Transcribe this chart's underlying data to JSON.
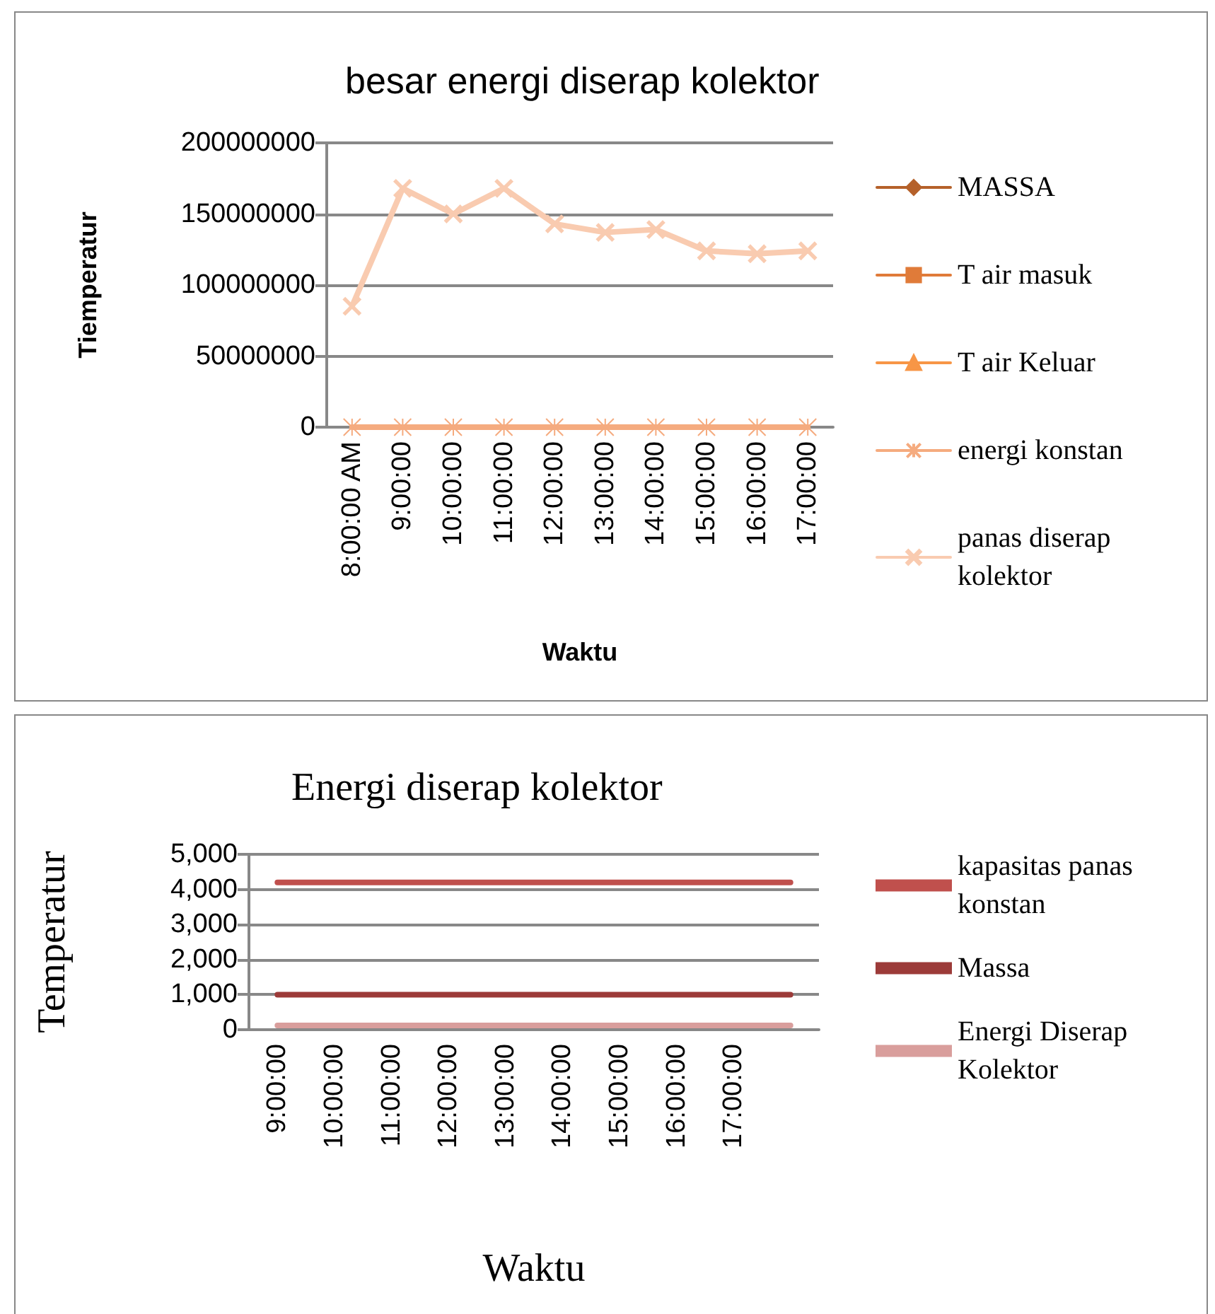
{
  "chart_data": [
    {
      "type": "line",
      "title": "besar energi diserap kolektor",
      "xlabel": "Waktu",
      "ylabel": "Tiemperatur",
      "categories": [
        "8:00:00 AM",
        "9:00:00",
        "10:00:00",
        "11:00:00",
        "12:00:00",
        "13:00:00",
        "14:00:00",
        "15:00:00",
        "16:00:00",
        "17:00:00"
      ],
      "series": [
        {
          "name": "MASSA",
          "color": "#b5612a",
          "marker": "diamond",
          "values": [
            null,
            null,
            null,
            null,
            null,
            null,
            null,
            null,
            null,
            null
          ]
        },
        {
          "name": "T air masuk",
          "color": "#e07b39",
          "marker": "square",
          "values": [
            null,
            null,
            null,
            null,
            null,
            null,
            null,
            null,
            null,
            null
          ]
        },
        {
          "name": "T air Keluar",
          "color": "#f79646",
          "marker": "triangle",
          "values": [
            null,
            null,
            null,
            null,
            null,
            null,
            null,
            null,
            null,
            null
          ]
        },
        {
          "name": "energi konstan",
          "color": "#f5ab7f",
          "marker": "star",
          "values": [
            0,
            0,
            0,
            0,
            0,
            0,
            0,
            0,
            0,
            0
          ]
        },
        {
          "name": "panas diserap kolektor",
          "color": "#f9cbb0",
          "marker": "cross",
          "values": [
            85000000,
            168000000,
            150000000,
            168000000,
            143000000,
            137000000,
            139000000,
            124000000,
            122000000,
            124000000
          ]
        }
      ],
      "ylim": [
        0,
        200000000
      ],
      "yticks": [
        0,
        50000000,
        100000000,
        150000000,
        200000000
      ],
      "grid": "y",
      "legend": "right"
    },
    {
      "type": "line",
      "title": "Energi diserap kolektor",
      "xlabel": "Waktu",
      "ylabel": "Temperatur",
      "categories": [
        "9:00:00",
        "10:00:00",
        "11:00:00",
        "12:00:00",
        "13:00:00",
        "14:00:00",
        "15:00:00",
        "16:00:00",
        "17:00:00",
        null
      ],
      "series": [
        {
          "name": "kapasitas panas konstan",
          "color": "#c0504d",
          "values": [
            4200,
            4200,
            4200,
            4200,
            4200,
            4200,
            4200,
            4200,
            4200,
            4200
          ]
        },
        {
          "name": "Massa",
          "color": "#9c3b39",
          "values": [
            1000,
            1000,
            1000,
            1000,
            1000,
            1000,
            1000,
            1000,
            1000,
            1000
          ]
        },
        {
          "name": "Energi Diserap Kolektor",
          "color": "#d99e9c",
          "values": [
            120,
            120,
            120,
            120,
            120,
            120,
            120,
            120,
            120,
            120
          ]
        }
      ],
      "ylim": [
        0,
        5000
      ],
      "yticks": [
        0,
        {
          "value": 1000,
          "label": "1,000"
        },
        {
          "value": 2000,
          "label": "2,000"
        },
        {
          "value": 3000,
          "label": "3,000"
        },
        {
          "value": 4000,
          "label": "4,000"
        },
        {
          "value": 5000,
          "label": "5,000"
        }
      ],
      "grid": "y",
      "legend": "right",
      "marker": "none"
    }
  ]
}
